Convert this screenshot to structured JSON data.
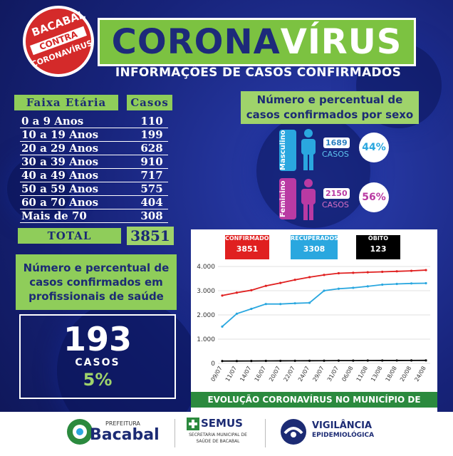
{
  "seal": {
    "top": "BACABAL",
    "middle": "CONTRA",
    "bottom": "CORONAVÍRUS"
  },
  "header": {
    "title_a": "CORONA",
    "title_b": "VÍRUS",
    "subtitle": "INFORMAÇÕES DE CASOS CONFIRMADOS"
  },
  "age_table": {
    "col1": "Faixa Etária",
    "col2": "Casos",
    "rows": [
      {
        "label": "0 a 9 Anos",
        "value": "110"
      },
      {
        "label": "10 a 19 Anos",
        "value": "199"
      },
      {
        "label": "20 a 29 Anos",
        "value": "628"
      },
      {
        "label": "30 a 39 Anos",
        "value": "910"
      },
      {
        "label": "40 a 49 Anos",
        "value": "717"
      },
      {
        "label": "50 a 59 Anos",
        "value": "575"
      },
      {
        "label": "60 a 70 Anos",
        "value": "404"
      },
      {
        "label": "Mais de 70",
        "value": "308"
      }
    ],
    "total_label": "TOTAL",
    "total_value": "3851"
  },
  "sex": {
    "title": "Número e percentual de casos confirmados por sexo",
    "male": {
      "label": "Masculino",
      "count": "1689",
      "casos": "CASOS",
      "pct": "44%",
      "color": "#2aa7df"
    },
    "female": {
      "label": "Feminino",
      "count": "2150",
      "casos": "CASOS",
      "pct": "56%",
      "color": "#b93aa3"
    }
  },
  "professionals": {
    "title": "Número e percentual de casos confirmados em profissionais de saúde",
    "count": "193",
    "casos": "CASOS",
    "pct": "5%"
  },
  "chart_legend": {
    "confirmed": {
      "label": "CONFIRMADOS",
      "value": "3851",
      "color": "#e02020"
    },
    "recovered": {
      "label": "RECUPERADOS",
      "value": "3308",
      "color": "#2aa7df"
    },
    "deaths": {
      "label": "ÓBITO",
      "value": "123",
      "color": "#000000"
    }
  },
  "chart_data": {
    "type": "line",
    "x": [
      "09/07",
      "11/07",
      "14/07",
      "16/07",
      "20/07",
      "22/07",
      "24/07",
      "29/07",
      "31/07",
      "06/08",
      "11/08",
      "13/08",
      "18/08",
      "20/08",
      "24/08"
    ],
    "ylim": [
      0,
      4000
    ],
    "yticks": [
      "0",
      "1.000",
      "2.000",
      "3.000",
      "4.000"
    ],
    "series": [
      {
        "name": "CONFIRMADOS",
        "color": "#e02020",
        "values": [
          2800,
          2920,
          3020,
          3200,
          3320,
          3450,
          3560,
          3650,
          3720,
          3740,
          3760,
          3780,
          3800,
          3820,
          3851
        ]
      },
      {
        "name": "RECUPERADOS",
        "color": "#2aa7df",
        "values": [
          1520,
          2050,
          2250,
          2450,
          2450,
          2480,
          2500,
          3000,
          3080,
          3120,
          3180,
          3250,
          3280,
          3300,
          3308
        ]
      },
      {
        "name": "ÓBITO",
        "color": "#000000",
        "values": [
          95,
          97,
          100,
          103,
          105,
          107,
          109,
          111,
          113,
          115,
          117,
          119,
          120,
          122,
          123
        ]
      }
    ]
  },
  "evo_title": "EVOLUÇÃO CORONAVÍRUS NO MUNICÍPIO DE BACABAL",
  "footer": {
    "prefeitura": "PREFEITURA",
    "bacabal": "Bacabal",
    "semus": "SEMUS",
    "semus_sub": "SECRETARIA MUNICIPAL DE SAÚDE DE BACABAL",
    "vig1": "VIGILÂNCIA",
    "vig2": "EPIDEMIOLÓGICA"
  }
}
